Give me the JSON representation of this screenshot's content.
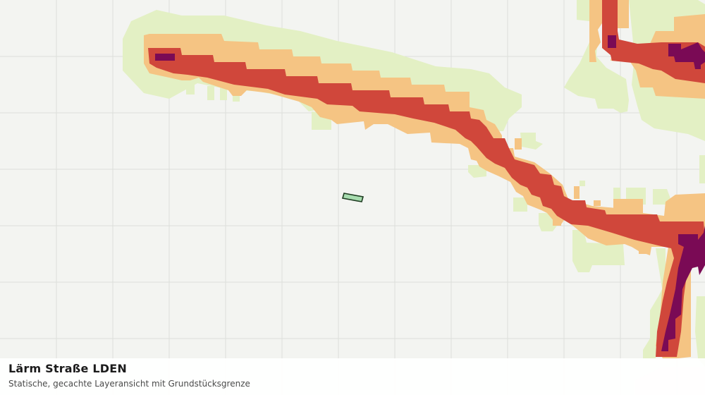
{
  "map": {
    "layer": "Lärm Straße LDEN",
    "noise_classes": [
      {
        "name": "class-1",
        "color": "#e3f0c4"
      },
      {
        "name": "class-2",
        "color": "#f5c483"
      },
      {
        "name": "class-3",
        "color": "#d0473b"
      },
      {
        "name": "class-4",
        "color": "#7a0a55"
      }
    ],
    "grid_color": "#dcdedb",
    "background_color": "#f3f4f1",
    "parcel_fill": "#a7dcaf"
  },
  "caption": {
    "title": "Lärm Straße LDEN",
    "subtitle": "Statische, gecachte Layeransicht mit Grundstücksgrenze"
  }
}
